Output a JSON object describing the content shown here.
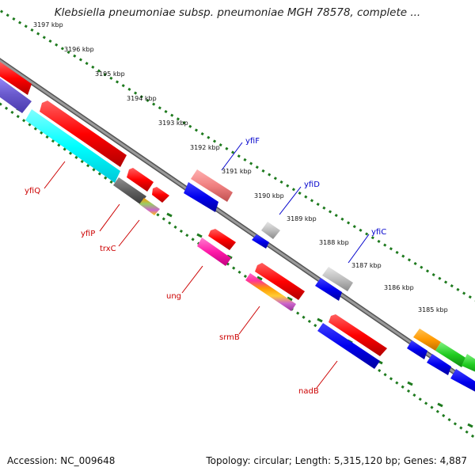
{
  "title": "Klebsiella pneumoniae subsp. pneumoniae MGH 78578, complete ...",
  "footer": {
    "accession": "Accession: NC_009648",
    "summary": "Topology: circular; Length: 5,315,120 bp; Genes: 4,887"
  },
  "colors": {
    "backbone": "#808080",
    "ruler": "#1e7a1e",
    "forward_label": "#0000cc",
    "reverse_label": "#cc0000"
  },
  "ruler_ticks": [
    {
      "label": "3197 kbp"
    },
    {
      "label": "3196 kbp"
    },
    {
      "label": "3195 kbp"
    },
    {
      "label": "3194 kbp"
    },
    {
      "label": "3193 kbp"
    },
    {
      "label": "3192 kbp"
    },
    {
      "label": "3191 kbp"
    },
    {
      "label": "3190 kbp"
    },
    {
      "label": "3189 kbp"
    },
    {
      "label": "3188 kbp"
    },
    {
      "label": "3187 kbp"
    },
    {
      "label": "3186 kbp"
    },
    {
      "label": "3185 kbp"
    }
  ],
  "gene_labels": [
    {
      "name": "yfiF",
      "strand": "forward"
    },
    {
      "name": "yfiD",
      "strand": "forward"
    },
    {
      "name": "yfiC",
      "strand": "forward"
    },
    {
      "name": "yfiQ",
      "strand": "reverse"
    },
    {
      "name": "yfiP",
      "strand": "reverse"
    },
    {
      "name": "trxC",
      "strand": "reverse"
    },
    {
      "name": "ung",
      "strand": "reverse"
    },
    {
      "name": "srmB",
      "strand": "reverse"
    },
    {
      "name": "nadB",
      "strand": "reverse"
    }
  ]
}
